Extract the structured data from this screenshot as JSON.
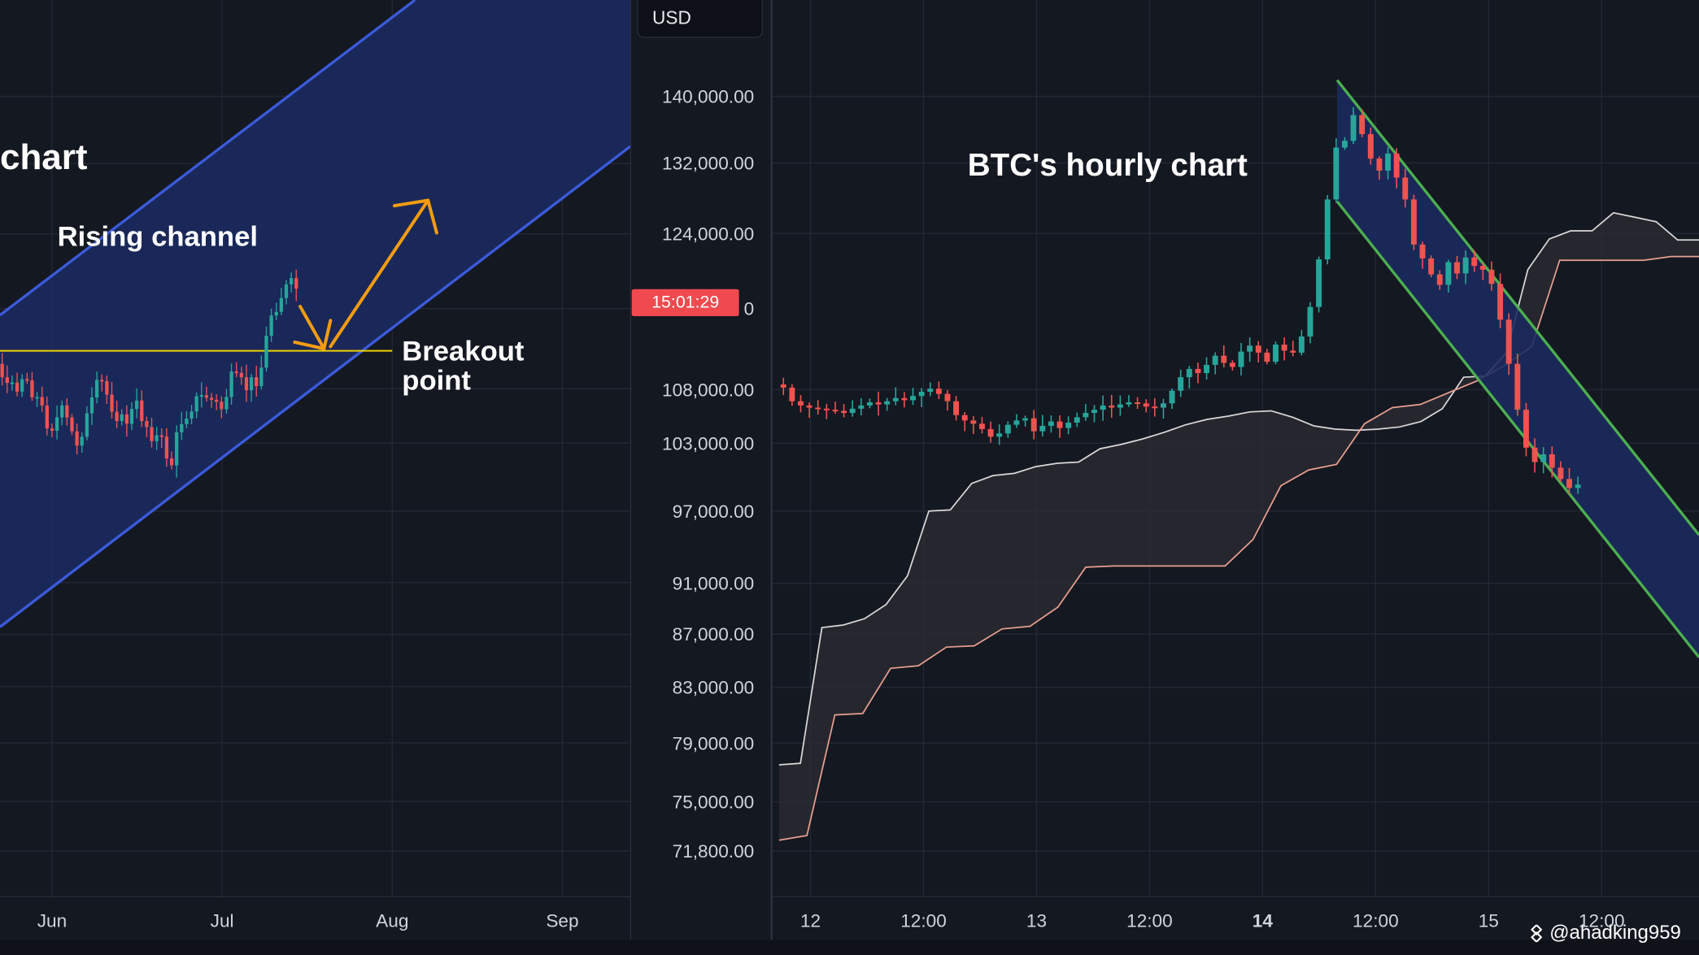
{
  "chart_data": [
    {
      "type": "candlestick",
      "panel": "left",
      "title": "",
      "annotations": [
        "chart",
        "Rising channel",
        "Breakout\npoint"
      ],
      "x_ticks": [
        "Jun",
        "Jul",
        "Aug",
        "Sep"
      ],
      "pattern": "rising channel",
      "breakout_level_usd": 111000,
      "colors": {
        "up": "#26a69a",
        "down": "#ef5350",
        "channel_fill": "#1b2a5e",
        "channel_line": "#3b5bdb",
        "breakout_line": "#f0d000",
        "arrow": "#f39c12"
      }
    },
    {
      "type": "candlestick",
      "panel": "right",
      "title": "BTC's hourly chart",
      "currency": "USD",
      "countdown": "15:01:29",
      "y_ticks": [
        "140,000.00",
        "132,000.00",
        "124,000.00",
        "108,000.00",
        "103,000.00",
        "97,000.00",
        "91,000.00",
        "87,000.00",
        "83,000.00",
        "79,000.00",
        "75,000.00",
        "71,800.00"
      ],
      "y_tick_partial": "0",
      "x_ticks": [
        "12",
        "12:00",
        "13",
        "12:00",
        "14",
        "12:00",
        "15",
        "12:00"
      ],
      "x_tick_bold": "14",
      "ohlc_close": [
        108200,
        106900,
        106500,
        106300,
        106200,
        106100,
        106000,
        105800,
        106200,
        106500,
        106800,
        106600,
        106900,
        107200,
        107000,
        107400,
        107800,
        108100,
        107600,
        106900,
        105600,
        105100,
        104800,
        104300,
        103600,
        103900,
        104700,
        105100,
        105300,
        104100,
        104600,
        105000,
        104400,
        104900,
        105400,
        105800,
        106100,
        106500,
        106300,
        106600,
        106800,
        106700,
        106400,
        106300,
        106700,
        107900,
        109200,
        110000,
        109600,
        110400,
        111300,
        110600,
        110200,
        111700,
        112300,
        111600,
        110700,
        112400,
        111800,
        111600,
        113200,
        116200,
        121200,
        127800,
        133800,
        134600,
        137700,
        135400,
        132500,
        131100,
        133100,
        130300,
        127800,
        122800,
        121300,
        119600,
        118500,
        120900,
        119700,
        121400,
        120500,
        120100,
        118600,
        114900,
        110500,
        106100,
        102600,
        101300,
        102000,
        100800,
        99800,
        99000,
        99300
      ],
      "ichimoku_span_a": [
        77500,
        77600,
        87500,
        87700,
        88200,
        89300,
        91600,
        97000,
        97100,
        99400,
        100100,
        100300,
        100900,
        101200,
        101300,
        102500,
        102900,
        103400,
        104000,
        104700,
        105200,
        105500,
        105900,
        106000,
        105400,
        104600,
        104300,
        104200,
        104300,
        104500,
        105000,
        106200,
        109200,
        109300,
        111600,
        120100,
        123400,
        124300,
        124300,
        126300,
        125800,
        125300,
        123300,
        123300
      ],
      "ichimoku_span_b": [
        72500,
        72800,
        81000,
        81100,
        84400,
        84600,
        86000,
        86100,
        87400,
        87600,
        89100,
        92300,
        92400,
        92400,
        92400,
        92400,
        92400,
        94600,
        99200,
        100600,
        101100,
        104800,
        106300,
        106600,
        107700,
        108800,
        110300,
        112200,
        121100,
        121100,
        121100,
        121100,
        121500,
        121500
      ],
      "descending_channel": {
        "upper_start": 142000,
        "lower_start": 130000,
        "direction": "down"
      },
      "colors": {
        "up": "#26a69a",
        "down": "#ef5350",
        "channel_fill": "#1b2a5e",
        "channel_line": "#4caf50",
        "kumo_fill": "#2a2c32",
        "span_a": "#d8d8d8",
        "span_b": "#e8a090"
      }
    }
  ],
  "watermark": {
    "text": "@ahadking959",
    "icon": "binance-logo-icon"
  }
}
